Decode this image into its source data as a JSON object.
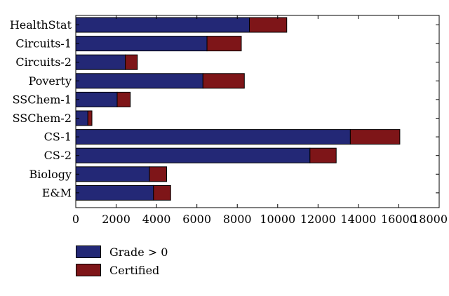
{
  "chart_data": {
    "type": "bar",
    "orientation": "horizontal",
    "stacked": true,
    "categories": [
      "HealthStat",
      "Circuits-1",
      "Circuits-2",
      "Poverty",
      "SSChem-1",
      "SSChem-2",
      "CS-1",
      "CS-2",
      "Biology",
      "E&M"
    ],
    "series": [
      {
        "name": "Grade > 0",
        "color": "#232876",
        "values": [
          8600,
          6500,
          2450,
          6300,
          2050,
          600,
          13600,
          11600,
          3650,
          3850
        ]
      },
      {
        "name": "Certified",
        "color": "#7e1518",
        "values": [
          1850,
          1700,
          600,
          2050,
          650,
          200,
          2450,
          1300,
          850,
          850
        ]
      }
    ],
    "xlim": [
      0,
      18000
    ],
    "xticks": [
      "0",
      "2000",
      "4000",
      "6000",
      "8000",
      "10000",
      "12000",
      "14000",
      "16000",
      "18000"
    ],
    "grid": false,
    "legend_position": "bottom-left"
  }
}
